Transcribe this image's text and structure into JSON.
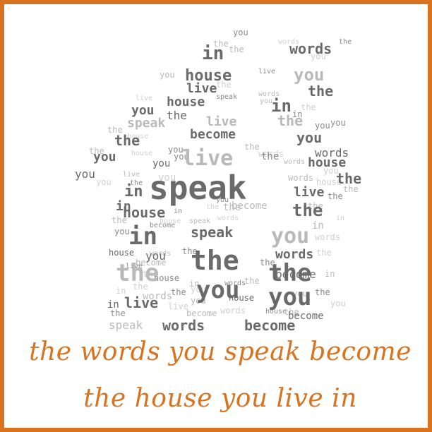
{
  "quote": {
    "line1": "the words you speak become",
    "line2": "the house you live in"
  },
  "word_cloud": {
    "words": [
      "the",
      "words",
      "you",
      "speak",
      "become",
      "house",
      "live",
      "in"
    ],
    "colors": {
      "dark": "#6a6a6a",
      "mid": "#8a8a8a",
      "light": "#b9b9b9",
      "faint": "#d0d0d0"
    }
  },
  "colors": {
    "accent": "#d9731f"
  }
}
